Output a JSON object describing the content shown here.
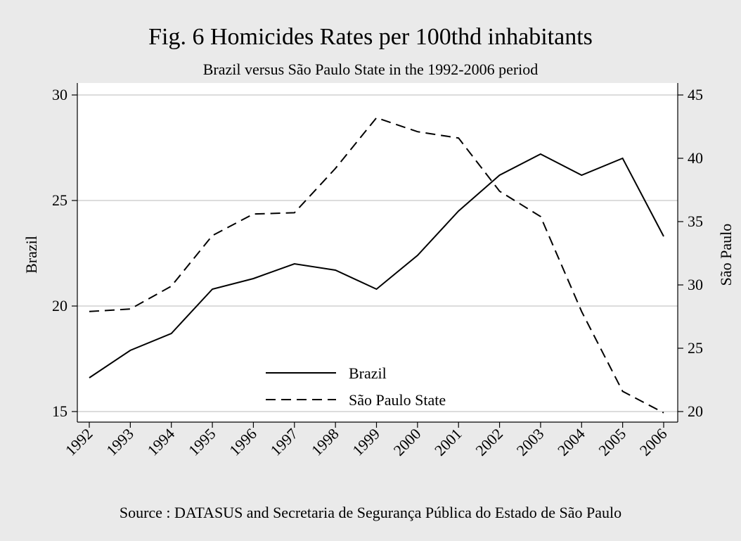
{
  "chart_data": {
    "type": "line",
    "title": "Fig. 6 Homicides Rates per 100thd inhabitants",
    "subtitle": "Brazil versus São Paulo State in the 1992-2006 period",
    "ylabel_left": "Brazil",
    "ylabel_right": "São Paulo",
    "note": "Source : DATASUS and Secretaria de Segurança Pública do Estado de São Paulo",
    "x": [
      "1992",
      "1993",
      "1994",
      "1995",
      "1996",
      "1997",
      "1998",
      "1999",
      "2000",
      "2001",
      "2002",
      "2003",
      "2004",
      "2005",
      "2006"
    ],
    "y_left": {
      "lim": [
        15,
        30
      ],
      "ticks": [
        15,
        20,
        25,
        30
      ]
    },
    "y_right": {
      "lim": [
        20,
        45
      ],
      "ticks": [
        20,
        25,
        30,
        35,
        40,
        45
      ]
    },
    "grid": true,
    "legend_position": "bottom-center",
    "series": [
      {
        "name": "Brazil",
        "axis": "left",
        "style": "solid",
        "color": "#000000",
        "values": [
          16.6,
          17.9,
          18.7,
          20.8,
          21.3,
          22.0,
          21.7,
          20.8,
          22.4,
          24.5,
          26.2,
          27.2,
          26.2,
          27.0,
          23.3
        ]
      },
      {
        "name": "São Paulo State",
        "axis": "right",
        "style": "dashed",
        "color": "#000000",
        "values": [
          27.9,
          28.1,
          29.9,
          33.9,
          35.6,
          35.7,
          39.2,
          43.2,
          42.1,
          41.6,
          37.4,
          35.4,
          27.9,
          21.6,
          19.9
        ]
      }
    ]
  }
}
